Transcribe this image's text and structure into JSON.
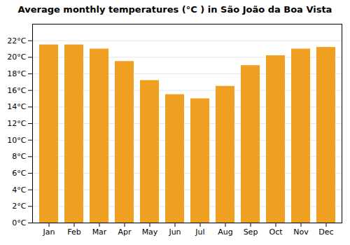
{
  "chart_data": {
    "type": "bar",
    "title": "Average monthly temperatures (°C ) in São João da Boa Vista",
    "categories": [
      "Jan",
      "Feb",
      "Mar",
      "Apr",
      "May",
      "Jun",
      "Jul",
      "Aug",
      "Sep",
      "Oct",
      "Nov",
      "Dec"
    ],
    "values": [
      21.5,
      21.5,
      21.0,
      19.5,
      17.2,
      15.5,
      15.0,
      16.5,
      19.0,
      20.2,
      21.0,
      21.2
    ],
    "color": "#F0A020",
    "ylim": [
      0,
      24
    ],
    "yticks": [
      {
        "value": 0,
        "label": "0°C"
      },
      {
        "value": 2,
        "label": "2°C"
      },
      {
        "value": 4,
        "label": "4°C"
      },
      {
        "value": 6,
        "label": "6°C"
      },
      {
        "value": 8,
        "label": "8°C"
      },
      {
        "value": 10,
        "label": "10°C"
      },
      {
        "value": 12,
        "label": "12°C"
      },
      {
        "value": 14,
        "label": "14°C"
      },
      {
        "value": 16,
        "label": "16°C"
      },
      {
        "value": 18,
        "label": "18°C"
      },
      {
        "value": 20,
        "label": "20°C"
      },
      {
        "value": 22,
        "label": "22°C"
      }
    ],
    "grid": true
  }
}
